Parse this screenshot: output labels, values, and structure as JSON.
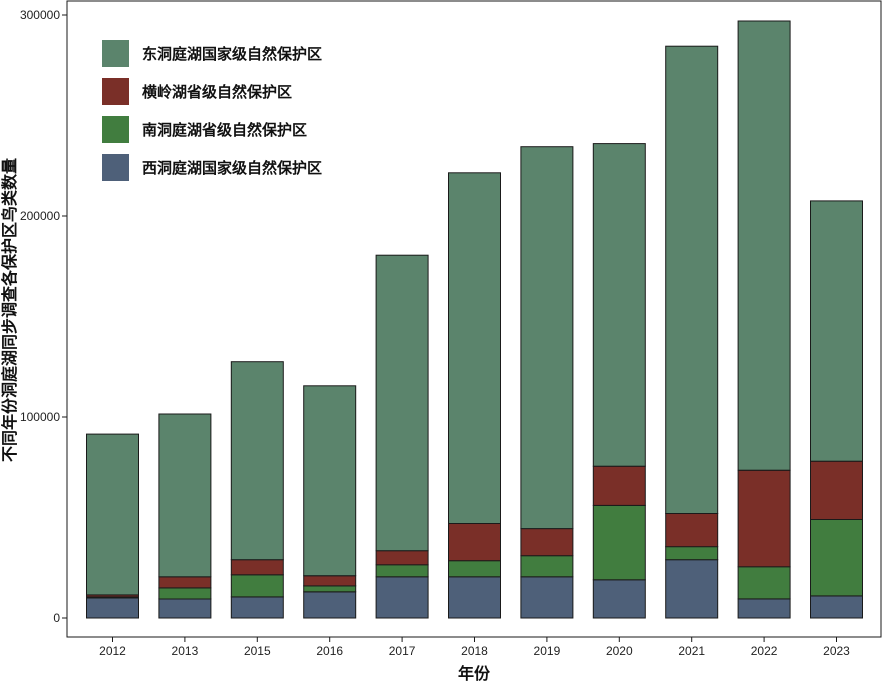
{
  "chart_data": {
    "type": "bar",
    "stacked": true,
    "title": "",
    "xlabel": "年份",
    "ylabel": "不同年份洞庭湖同步调查各保护区鸟类数量",
    "ylim": [
      0,
      300000
    ],
    "yticks": [
      0,
      100000,
      200000,
      300000
    ],
    "grid": false,
    "legend_position": "top-left",
    "categories": [
      "2012",
      "2013",
      "2015",
      "2016",
      "2017",
      "2018",
      "2019",
      "2020",
      "2021",
      "2022",
      "2023"
    ],
    "series": [
      {
        "name": "西洞庭湖国家级自然保护区",
        "color": "#4e6079",
        "values": [
          10000,
          9500,
          10500,
          13000,
          20500,
          20500,
          20500,
          19000,
          29000,
          9500,
          11000
        ]
      },
      {
        "name": "南洞庭湖省级自然保护区",
        "color": "#417d3f",
        "values": [
          500,
          5500,
          11000,
          3000,
          6000,
          8000,
          10500,
          37000,
          6500,
          16000,
          38000
        ]
      },
      {
        "name": "横岭湖省级自然保护区",
        "color": "#7a2f28",
        "values": [
          1000,
          5500,
          7500,
          5000,
          7000,
          18500,
          13500,
          19500,
          16500,
          48000,
          29000
        ]
      },
      {
        "name": "东洞庭湖国家级自然保护区",
        "color": "#5b846c",
        "values": [
          80000,
          81000,
          98500,
          94500,
          147000,
          174500,
          190000,
          160500,
          232500,
          223500,
          129500
        ]
      }
    ],
    "legend_order": [
      "东洞庭湖国家级自然保护区",
      "横岭湖省级自然保护区",
      "南洞庭湖省级自然保护区",
      "西洞庭湖国家级自然保护区"
    ]
  }
}
